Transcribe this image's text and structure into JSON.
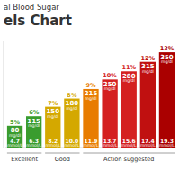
{
  "chart_data": {
    "type": "bar",
    "title": "al Blood Sugar",
    "subtitle": "els Chart",
    "categories": [
      "4.7",
      "6.3",
      "8.2",
      "10.0",
      "11.9",
      "13.7",
      "15.6",
      "17.4",
      "19.3"
    ],
    "values": [
      80,
      115,
      150,
      180,
      215,
      250,
      280,
      315,
      350
    ],
    "colors": [
      "#3a9c2e",
      "#3a9c2e",
      "#d4a800",
      "#d4a800",
      "#e87c00",
      "#d42020",
      "#d42020",
      "#c01010",
      "#aa0000"
    ],
    "annotations": [
      "5%",
      "6%",
      "7%",
      "8%",
      "9%",
      "10%",
      "11%",
      "12%",
      "13%"
    ],
    "ylabel": "mg/dl",
    "xlabel": "mmol/L",
    "groups": [
      {
        "label": "Excellent",
        "categories": [
          "4.7",
          "6.3"
        ]
      },
      {
        "label": "Good",
        "categories": [
          "8.2",
          "10.0"
        ]
      },
      {
        "label": "Action suggested",
        "categories": [
          "11.9",
          "13.7",
          "15.6",
          "17.4",
          "19.3"
        ]
      }
    ],
    "ylim": [
      0,
      390
    ],
    "data_labels": true,
    "tick_labels": false
  }
}
